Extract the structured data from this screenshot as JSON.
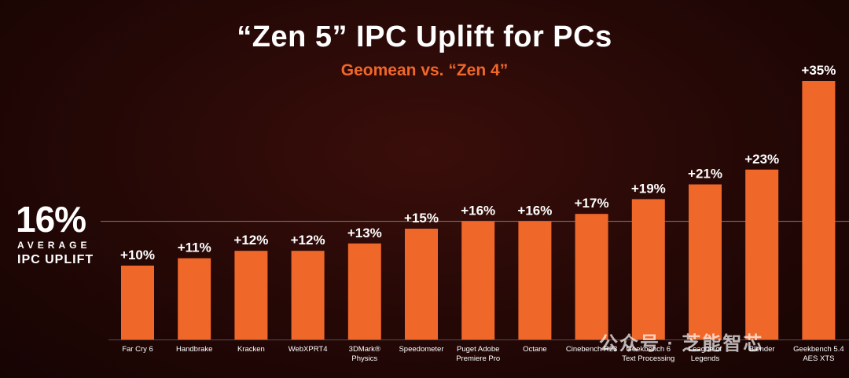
{
  "title": "“Zen 5” IPC Uplift for PCs",
  "subtitle": "Geomean vs. “Zen 4”",
  "average": {
    "value_label": "16%",
    "word": "AVERAGE",
    "label": "IPC UPLIFT",
    "value": 16
  },
  "watermark": "公众号 · 芝能智芯",
  "colors": {
    "bar": "#f0672a",
    "text": "#ffffff",
    "accent": "#f0672a"
  },
  "chart_data": {
    "type": "bar",
    "categories": [
      [
        "Far Cry 6"
      ],
      [
        "Handbrake"
      ],
      [
        "Kracken"
      ],
      [
        "WebXPRT4"
      ],
      [
        "3DMark®",
        "Physics"
      ],
      [
        "Speedometer"
      ],
      [
        "Puget Adobe",
        "Premiere Pro"
      ],
      [
        "Octane"
      ],
      [
        "Cinebench R23"
      ],
      [
        "Geekbench 6",
        "Text Processing"
      ],
      [
        "League of",
        "Legends"
      ],
      [
        "Blender"
      ],
      [
        "Geekbench 5.4",
        "AES XTS"
      ]
    ],
    "values": [
      10,
      11,
      12,
      12,
      13,
      15,
      16,
      16,
      17,
      19,
      21,
      23,
      35
    ],
    "value_labels": [
      "+10%",
      "+11%",
      "+12%",
      "+12%",
      "+13%",
      "+15%",
      "+16%",
      "+16%",
      "+17%",
      "+19%",
      "+21%",
      "+23%",
      "+35%"
    ],
    "average_line": 16,
    "ylim": [
      0,
      36
    ],
    "grid": false,
    "legend": "none"
  }
}
